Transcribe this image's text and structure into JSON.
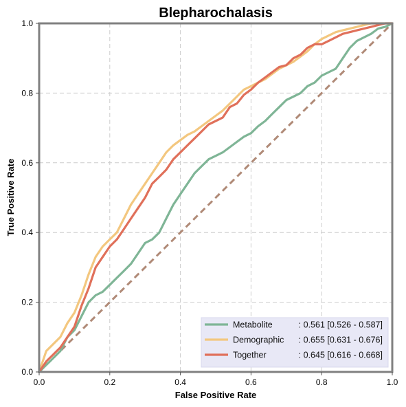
{
  "chart_data": {
    "type": "line",
    "title": "Blepharochalasis",
    "xlabel": "False Positive Rate",
    "ylabel": "True Positive Rate",
    "xlim": [
      0,
      1
    ],
    "ylim": [
      0,
      1
    ],
    "xticks": [
      "0.0",
      "0.2",
      "0.4",
      "0.6",
      "0.8",
      "1.0"
    ],
    "yticks": [
      "0.0",
      "0.2",
      "0.4",
      "0.6",
      "0.8",
      "1.0"
    ],
    "grid": true,
    "legend_position": "lower-right",
    "colors": {
      "metabolite": "#7fb596",
      "demographic": "#f3c77f",
      "together": "#e0705a",
      "chance": "#b08a77",
      "legend_bg": "#e8e8f6",
      "frame": "#808080",
      "grid": "#cccccc"
    },
    "series": [
      {
        "name": "Metabolite",
        "legend": {
          "name": "Metabolite",
          "stats": ": 0.561 [0.526 - 0.587]"
        },
        "x": [
          0,
          0.02,
          0.04,
          0.06,
          0.08,
          0.1,
          0.12,
          0.14,
          0.16,
          0.18,
          0.2,
          0.22,
          0.24,
          0.26,
          0.28,
          0.3,
          0.32,
          0.34,
          0.36,
          0.38,
          0.4,
          0.42,
          0.44,
          0.46,
          0.48,
          0.5,
          0.52,
          0.54,
          0.56,
          0.58,
          0.6,
          0.62,
          0.64,
          0.66,
          0.68,
          0.7,
          0.72,
          0.74,
          0.76,
          0.78,
          0.8,
          0.82,
          0.84,
          0.86,
          0.88,
          0.9,
          0.92,
          0.94,
          0.96,
          0.98,
          1.0
        ],
        "y": [
          0,
          0.02,
          0.04,
          0.06,
          0.1,
          0.12,
          0.16,
          0.2,
          0.22,
          0.23,
          0.25,
          0.27,
          0.29,
          0.31,
          0.34,
          0.37,
          0.38,
          0.4,
          0.44,
          0.48,
          0.51,
          0.54,
          0.57,
          0.59,
          0.61,
          0.62,
          0.63,
          0.645,
          0.66,
          0.675,
          0.685,
          0.705,
          0.72,
          0.74,
          0.76,
          0.78,
          0.79,
          0.8,
          0.82,
          0.83,
          0.85,
          0.86,
          0.87,
          0.9,
          0.93,
          0.95,
          0.96,
          0.97,
          0.985,
          0.99,
          1.0
        ]
      },
      {
        "name": "Demographic",
        "legend": {
          "name": "Demographic",
          "stats": ": 0.655 [0.631 - 0.676]"
        },
        "x": [
          0,
          0.02,
          0.04,
          0.06,
          0.08,
          0.1,
          0.12,
          0.14,
          0.16,
          0.18,
          0.2,
          0.22,
          0.24,
          0.26,
          0.28,
          0.3,
          0.32,
          0.34,
          0.36,
          0.38,
          0.4,
          0.42,
          0.44,
          0.46,
          0.48,
          0.5,
          0.52,
          0.54,
          0.56,
          0.58,
          0.6,
          0.62,
          0.64,
          0.66,
          0.68,
          0.7,
          0.72,
          0.74,
          0.76,
          0.78,
          0.8,
          0.82,
          0.84,
          0.86,
          0.88,
          0.9,
          0.92,
          0.94,
          0.96,
          0.98,
          1.0
        ],
        "y": [
          0,
          0.06,
          0.08,
          0.1,
          0.14,
          0.17,
          0.22,
          0.28,
          0.33,
          0.36,
          0.38,
          0.4,
          0.44,
          0.48,
          0.51,
          0.54,
          0.57,
          0.6,
          0.63,
          0.65,
          0.665,
          0.68,
          0.69,
          0.705,
          0.72,
          0.735,
          0.75,
          0.77,
          0.79,
          0.81,
          0.82,
          0.83,
          0.84,
          0.855,
          0.87,
          0.88,
          0.89,
          0.905,
          0.92,
          0.94,
          0.955,
          0.965,
          0.975,
          0.98,
          0.985,
          0.99,
          0.995,
          1.0,
          1.0,
          1.0,
          1.0
        ]
      },
      {
        "name": "Together",
        "legend": {
          "name": "Together",
          "stats": ": 0.645 [0.616 - 0.668]"
        },
        "x": [
          0,
          0.02,
          0.04,
          0.06,
          0.08,
          0.1,
          0.12,
          0.14,
          0.16,
          0.18,
          0.2,
          0.22,
          0.24,
          0.26,
          0.28,
          0.3,
          0.32,
          0.34,
          0.36,
          0.38,
          0.4,
          0.42,
          0.44,
          0.46,
          0.48,
          0.5,
          0.52,
          0.54,
          0.56,
          0.58,
          0.6,
          0.62,
          0.64,
          0.66,
          0.68,
          0.7,
          0.72,
          0.74,
          0.76,
          0.78,
          0.8,
          0.82,
          0.84,
          0.86,
          0.88,
          0.9,
          0.92,
          0.94,
          0.96,
          0.98,
          1.0
        ],
        "y": [
          0,
          0.03,
          0.05,
          0.07,
          0.1,
          0.13,
          0.19,
          0.24,
          0.3,
          0.33,
          0.36,
          0.38,
          0.41,
          0.44,
          0.47,
          0.5,
          0.54,
          0.56,
          0.58,
          0.61,
          0.63,
          0.65,
          0.67,
          0.69,
          0.71,
          0.72,
          0.73,
          0.76,
          0.77,
          0.795,
          0.81,
          0.83,
          0.845,
          0.86,
          0.875,
          0.88,
          0.9,
          0.91,
          0.93,
          0.94,
          0.94,
          0.95,
          0.96,
          0.97,
          0.975,
          0.98,
          0.985,
          0.99,
          0.995,
          1.0,
          1.0
        ]
      }
    ],
    "reference_line": {
      "x": [
        0,
        1
      ],
      "y": [
        0,
        1
      ]
    }
  }
}
